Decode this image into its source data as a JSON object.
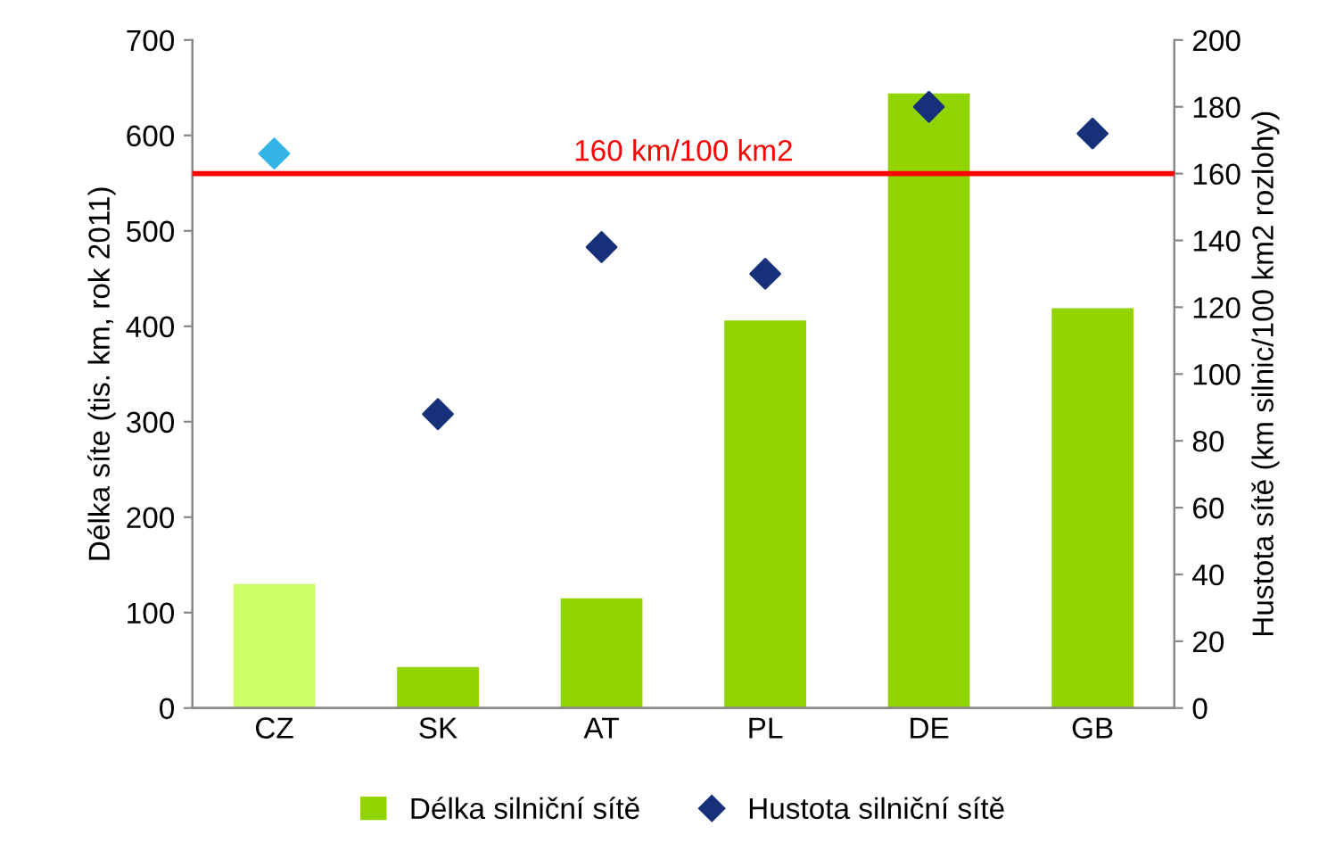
{
  "chart_data": {
    "type": "bar",
    "categories": [
      "CZ",
      "SK",
      "AT",
      "PL",
      "DE",
      "GB"
    ],
    "ylabel": "Délka síte (tis. km, rok 2011)",
    "y2label": "Hustota sítě (km silnic/100 km2 rozlohy)",
    "series": [
      {
        "name": "Délka silniční sítě",
        "color": "#92d400",
        "colors": [
          "#ccff66",
          "#92d400",
          "#92d400",
          "#92d400",
          "#92d400",
          "#92d400"
        ],
        "values": [
          130,
          43,
          115,
          406,
          644,
          419
        ]
      },
      {
        "name": "Hustota silniční sítě",
        "type": "scatter",
        "axis": "y2",
        "color": "#17307a",
        "colors": [
          "#33b5e5",
          "#17307a",
          "#17307a",
          "#17307a",
          "#17307a",
          "#17307a"
        ],
        "values": [
          166,
          88,
          138,
          130,
          180,
          172
        ]
      }
    ],
    "ylim": [
      0,
      700
    ],
    "yticks": [
      0,
      100,
      200,
      300,
      400,
      500,
      600,
      700
    ],
    "y2lim": [
      0,
      200
    ],
    "y2ticks": [
      0,
      20,
      40,
      60,
      80,
      100,
      120,
      140,
      160,
      180,
      200
    ],
    "ref_lines": [
      {
        "axis": "y2",
        "value": 160,
        "label": "160 km/100 km2",
        "color": "#ff0000"
      }
    ],
    "marker": "diamond",
    "grid": false,
    "legend": "bottom"
  }
}
